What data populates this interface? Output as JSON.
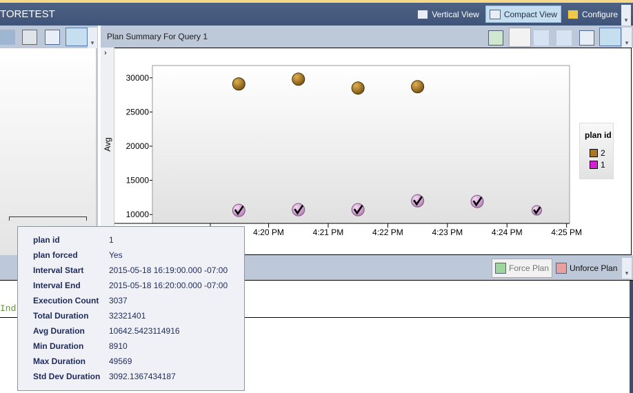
{
  "window": {
    "title": "TORETEST"
  },
  "top_toolbar": {
    "buttons": [
      {
        "label": "Vertical View",
        "icon": "vertical-view-icon"
      },
      {
        "label": "Compact View",
        "icon": "compact-view-icon",
        "selected": true
      },
      {
        "label": "Configure",
        "icon": "configure-icon"
      }
    ]
  },
  "plan_panel": {
    "title": "Plan Summary For Query 1",
    "collapse_glyph": "›"
  },
  "plan_toolbar": {
    "icons": [
      "refresh-icon",
      "force-plan-icon",
      "unforce-plan-icon",
      "compare-plans-icon",
      "grid-view-icon",
      "chart-view-icon"
    ]
  },
  "bottom_toolbar": {
    "force_label": "Force Plan",
    "unforce_label": "Unforce Plan"
  },
  "query_text": {
    "fragment": "Ind"
  },
  "chart_data": {
    "type": "scatter",
    "ylabel": "Avg",
    "yticks": [
      "30000",
      "25000",
      "20000",
      "15000",
      "10000"
    ],
    "ytick_values": [
      30000,
      25000,
      20000,
      15000,
      10000
    ],
    "xticks": [
      "4:20 PM",
      "4:21 PM",
      "4:22 PM",
      "4:23 PM",
      "4:24 PM",
      "4:25 PM"
    ],
    "xtick_minutes": [
      20,
      21,
      22,
      23,
      24,
      25
    ],
    "xlim_minutes": [
      18.05,
      25.05
    ],
    "ylim": [
      8700,
      31800
    ],
    "legend": {
      "title": "plan id",
      "placement": "right"
    },
    "series": [
      {
        "name": "2",
        "color": "#a9781f",
        "forced": false,
        "x_minutes": [
          19.5,
          20.5,
          21.5,
          22.5
        ],
        "y": [
          29100,
          29800,
          28500,
          28700
        ]
      },
      {
        "name": "1",
        "color": "#d61ed6",
        "forced": true,
        "x_minutes": [
          19.5,
          20.5,
          21.5,
          22.5,
          23.5,
          24.5
        ],
        "y": [
          10600,
          10700,
          10700,
          12000,
          11900,
          10600
        ]
      }
    ]
  },
  "tooltip": {
    "rows": [
      {
        "k": "plan id",
        "v": "1"
      },
      {
        "k": "plan forced",
        "v": "Yes"
      },
      {
        "k": "Interval Start",
        "v": "2015-05-18 16:19:00.000 -07:00"
      },
      {
        "k": "Interval End",
        "v": "2015-05-18 16:20:00.000 -07:00"
      },
      {
        "k": "Execution Count",
        "v": "3037"
      },
      {
        "k": "Total Duration",
        "v": "32321401"
      },
      {
        "k": "Avg Duration",
        "v": "10642.5423114916"
      },
      {
        "k": "Min Duration",
        "v": "8910"
      },
      {
        "k": "Max Duration",
        "v": "49569"
      },
      {
        "k": "Std Dev Duration",
        "v": "3092.1367434187"
      }
    ]
  }
}
